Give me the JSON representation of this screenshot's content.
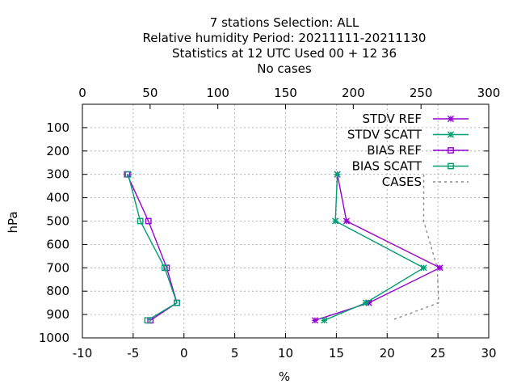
{
  "chart_data": {
    "type": "line",
    "title_lines": [
      "7 stations Selection: ALL",
      "Relative humidity  Period: 20211111-20211130",
      "Statistics at 12 UTC  Used  00 + 12 36",
      "No cases"
    ],
    "xlabel": "%",
    "ylabel": "hPa",
    "xlim": [
      -10,
      30
    ],
    "x_ticks": [
      -10,
      -5,
      0,
      5,
      10,
      15,
      20,
      25,
      30
    ],
    "x2lim": [
      0,
      300
    ],
    "x2_ticks": [
      0,
      50,
      100,
      150,
      200,
      250,
      300
    ],
    "ylim": [
      1000,
      0
    ],
    "y_ticks": [
      100,
      200,
      300,
      400,
      500,
      600,
      700,
      800,
      900,
      1000
    ],
    "grid": true,
    "legend_position": "top-right",
    "series": [
      {
        "name": "STDV REF",
        "color": "#9400d3",
        "marker": "star",
        "axis": "x1",
        "points": [
          [
            15.1,
            300
          ],
          [
            16.0,
            500
          ],
          [
            25.2,
            700
          ],
          [
            18.2,
            850
          ],
          [
            12.9,
            925
          ]
        ]
      },
      {
        "name": "STDV SCATT",
        "color": "#009e73",
        "marker": "star",
        "axis": "x1",
        "points": [
          [
            15.1,
            300
          ],
          [
            14.9,
            500
          ],
          [
            23.6,
            700
          ],
          [
            17.9,
            850
          ],
          [
            13.8,
            925
          ]
        ]
      },
      {
        "name": "BIAS REF",
        "color": "#9400d3",
        "marker": "square",
        "axis": "x1",
        "points": [
          [
            -5.6,
            300
          ],
          [
            -3.5,
            500
          ],
          [
            -1.7,
            700
          ],
          [
            -0.7,
            850
          ],
          [
            -3.3,
            925
          ]
        ]
      },
      {
        "name": "BIAS SCATT",
        "color": "#009e73",
        "marker": "square",
        "axis": "x1",
        "points": [
          [
            -5.5,
            300
          ],
          [
            -4.3,
            500
          ],
          [
            -1.9,
            700
          ],
          [
            -0.7,
            850
          ],
          [
            -3.6,
            925
          ]
        ]
      },
      {
        "name": "CASES",
        "color": "#888888",
        "marker": "none",
        "dashed": true,
        "axis": "x2",
        "points": [
          [
            252,
            300
          ],
          [
            252,
            500
          ],
          [
            262,
            700
          ],
          [
            263,
            850
          ],
          [
            228,
            925
          ]
        ]
      }
    ]
  }
}
